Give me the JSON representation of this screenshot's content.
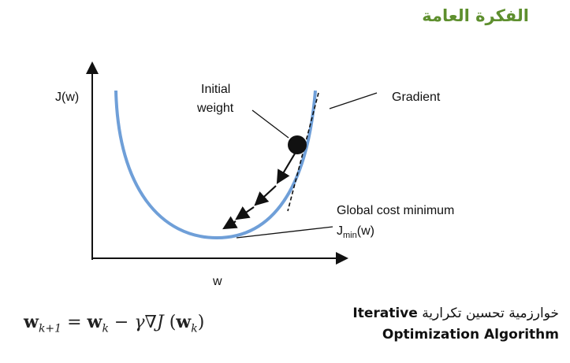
{
  "header": {
    "title": "الفكرة العامة"
  },
  "diagram": {
    "y_axis_label": "J(w)",
    "x_axis_label": "w",
    "initial_weight_line1": "Initial",
    "initial_weight_line2": "weight",
    "gradient_label": "Gradient",
    "global_min_label": "Global cost minimum",
    "jmin_J": "J",
    "jmin_sub": "min",
    "jmin_tail": "(w)",
    "colors": {
      "curve": "#6f9fd8",
      "ink": "#111111"
    }
  },
  "formula": {
    "lhs_w": "w",
    "lhs_sub": "k+1",
    "equals": " = ",
    "rhs_w": "w",
    "rhs_sub": "k",
    "minus": " − ",
    "gamma_nabla_J": "γ∇J",
    "open_paren": " (",
    "arg_w": "w",
    "arg_sub": "k",
    "close_paren": ")"
  },
  "caption": {
    "arabic": "خوارزمية تحسين تكرارية",
    "english_1": "Iterative",
    "english_2": "Optimization Algorithm"
  }
}
